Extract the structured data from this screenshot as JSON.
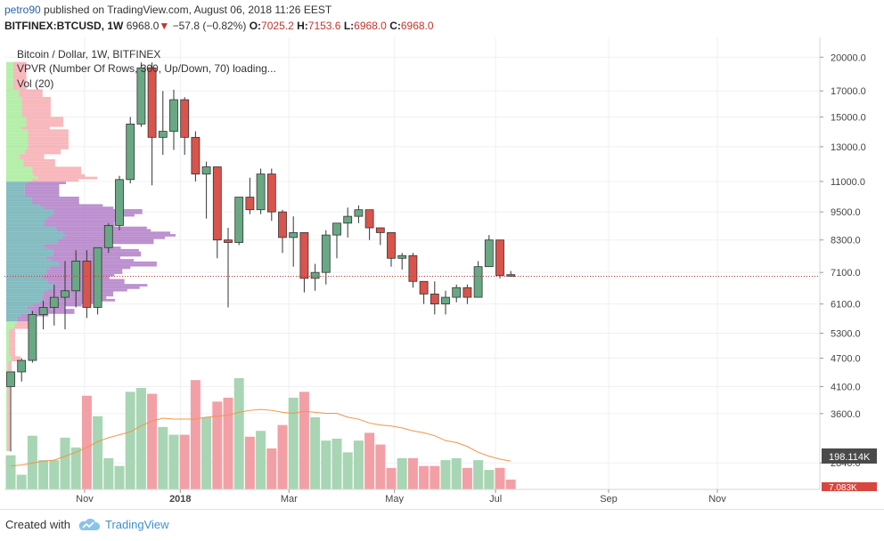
{
  "header": {
    "author": "petro90",
    "published_text": "published on TradingView.com, August 06, 2018 11:26 EEST",
    "symbol": "BITFINEX:BTCUSD, 1W",
    "last": "6968.0",
    "arrow": "▼",
    "change": "−57.8 (−0.82%)",
    "o_label": "O:",
    "o_value": "7025.2",
    "h_label": "H:",
    "h_value": "7153.6",
    "l_label": "L:",
    "l_value": "6968.0",
    "c_label": "C:",
    "c_value": "6968.0"
  },
  "legend": {
    "line1": "Bitcoin / Dollar, 1W, BITFINEX",
    "line2": "VPVR (Number Of Rows, 300, Up/Down, 70) loading...",
    "line3": "Vol (20)"
  },
  "footer": {
    "created": "Created with",
    "brand": "TradingView"
  },
  "colors": {
    "up": "#4a9e6e",
    "down": "#d7473f",
    "up_fill": "#69a884",
    "down_fill": "#d9544c",
    "vol_up": "#a8d5b4",
    "vol_down": "#f2a0a6",
    "vol_ma": "#f39447",
    "vp_up": "#9bea8c",
    "vp_down": "#f4a0a6",
    "vp_va_up": "#5aa6ac",
    "vp_va_down": "#a66bbf",
    "price_line": "#c3352d",
    "vol_label_bg": "#4a4a4a"
  },
  "chart_data": {
    "type": "candlestick",
    "title": "Bitcoin / Dollar, 1W, BITFINEX",
    "y_scale": "log",
    "ylim": [
      2500,
      22000
    ],
    "y_ticks": [
      20000,
      17000,
      15000,
      13000,
      11000,
      9500,
      8300,
      7100,
      6100,
      5300,
      4700,
      4100,
      3600,
      2840
    ],
    "y_tick_labels": [
      "20000.0",
      "17000.0",
      "15000.0",
      "13000.0",
      "11000.0",
      "9500.0",
      "8300.0",
      "7100.0",
      "6100.0",
      "5300.0",
      "4700.0",
      "4100.0",
      "3600.0",
      "2840.0"
    ],
    "x_ticks": [
      "Nov",
      "2018",
      "Mar",
      "May",
      "Jul",
      "Sep",
      "Nov"
    ],
    "last_price": 6968.0,
    "volume_label": "198.114K",
    "volume_label2": "7.083K",
    "candles": [
      {
        "o": 4100,
        "h": 4400,
        "l": 3000,
        "c": 4400
      },
      {
        "o": 4400,
        "h": 4700,
        "l": 4200,
        "c": 4650
      },
      {
        "o": 4650,
        "h": 5900,
        "l": 4600,
        "c": 5800
      },
      {
        "o": 5800,
        "h": 6200,
        "l": 5400,
        "c": 6000
      },
      {
        "o": 6000,
        "h": 6700,
        "l": 5500,
        "c": 6300
      },
      {
        "o": 6300,
        "h": 7500,
        "l": 5400,
        "c": 6500
      },
      {
        "o": 6500,
        "h": 7900,
        "l": 6000,
        "c": 7500
      },
      {
        "o": 7500,
        "h": 7900,
        "l": 5700,
        "c": 6000
      },
      {
        "o": 6000,
        "h": 8000,
        "l": 5800,
        "c": 8000
      },
      {
        "o": 8000,
        "h": 9000,
        "l": 7800,
        "c": 8900
      },
      {
        "o": 8900,
        "h": 11300,
        "l": 8700,
        "c": 11100
      },
      {
        "o": 11100,
        "h": 15000,
        "l": 10900,
        "c": 14500
      },
      {
        "o": 14500,
        "h": 19500,
        "l": 14300,
        "c": 19000
      },
      {
        "o": 19000,
        "h": 19500,
        "l": 10800,
        "c": 13600
      },
      {
        "o": 13600,
        "h": 17000,
        "l": 12500,
        "c": 14000
      },
      {
        "o": 14000,
        "h": 17100,
        "l": 12800,
        "c": 16300
      },
      {
        "o": 16300,
        "h": 16500,
        "l": 12500,
        "c": 13600
      },
      {
        "o": 13600,
        "h": 14000,
        "l": 11000,
        "c": 11400
      },
      {
        "o": 11400,
        "h": 12100,
        "l": 9200,
        "c": 11800
      },
      {
        "o": 11800,
        "h": 11800,
        "l": 7600,
        "c": 8300
      },
      {
        "o": 8300,
        "h": 8800,
        "l": 6000,
        "c": 8200
      },
      {
        "o": 8200,
        "h": 10200,
        "l": 8100,
        "c": 10200
      },
      {
        "o": 10200,
        "h": 11200,
        "l": 9400,
        "c": 9600
      },
      {
        "o": 9600,
        "h": 11700,
        "l": 9400,
        "c": 11400
      },
      {
        "o": 11400,
        "h": 11700,
        "l": 9100,
        "c": 9500
      },
      {
        "o": 9500,
        "h": 9600,
        "l": 7800,
        "c": 8400
      },
      {
        "o": 8400,
        "h": 9300,
        "l": 7300,
        "c": 8600
      },
      {
        "o": 8600,
        "h": 8600,
        "l": 6450,
        "c": 6900
      },
      {
        "o": 6900,
        "h": 7400,
        "l": 6500,
        "c": 7100
      },
      {
        "o": 7100,
        "h": 8700,
        "l": 6700,
        "c": 8500
      },
      {
        "o": 8500,
        "h": 9000,
        "l": 7600,
        "c": 9000
      },
      {
        "o": 9000,
        "h": 9700,
        "l": 8400,
        "c": 9300
      },
      {
        "o": 9300,
        "h": 9800,
        "l": 9000,
        "c": 9600
      },
      {
        "o": 9600,
        "h": 9600,
        "l": 8300,
        "c": 8800
      },
      {
        "o": 8800,
        "h": 8800,
        "l": 8100,
        "c": 8600
      },
      {
        "o": 8600,
        "h": 8600,
        "l": 7300,
        "c": 7600
      },
      {
        "o": 7600,
        "h": 7800,
        "l": 7200,
        "c": 7700
      },
      {
        "o": 7700,
        "h": 7800,
        "l": 6600,
        "c": 6800
      },
      {
        "o": 6800,
        "h": 6800,
        "l": 6100,
        "c": 6400
      },
      {
        "o": 6400,
        "h": 6800,
        "l": 5800,
        "c": 6100
      },
      {
        "o": 6100,
        "h": 6500,
        "l": 5800,
        "c": 6300
      },
      {
        "o": 6300,
        "h": 6700,
        "l": 6150,
        "c": 6600
      },
      {
        "o": 6600,
        "h": 6700,
        "l": 6100,
        "c": 6300
      },
      {
        "o": 6300,
        "h": 7500,
        "l": 6300,
        "c": 7300
      },
      {
        "o": 7300,
        "h": 8500,
        "l": 7300,
        "c": 8300
      },
      {
        "o": 8300,
        "h": 8300,
        "l": 6900,
        "c": 7000
      },
      {
        "o": 7025,
        "h": 7150,
        "l": 6968,
        "c": 6968
      }
    ],
    "volumes": [
      3.5,
      1.5,
      5.5,
      3.0,
      3.0,
      5.3,
      4.3,
      9.6,
      7.5,
      3.2,
      2.4,
      10.0,
      10.4,
      9.8,
      6.4,
      5.6,
      5.6,
      11.2,
      7.4,
      9.0,
      9.4,
      11.4,
      5.4,
      6.0,
      4.2,
      6.6,
      9.4,
      10.0,
      7.4,
      5.0,
      5.2,
      3.8,
      5.0,
      5.8,
      4.6,
      2.2,
      3.2,
      3.2,
      2.4,
      2.4,
      3.0,
      3.2,
      2.2,
      3.0,
      2.0,
      2.2,
      1.0
    ],
    "volume_ma": [
      2.4,
      2.5,
      2.7,
      2.9,
      3.0,
      3.4,
      3.8,
      4.3,
      4.9,
      5.3,
      5.6,
      5.9,
      6.5,
      7.0,
      7.3,
      7.2,
      7.2,
      7.2,
      7.4,
      7.5,
      7.6,
      7.9,
      8.1,
      8.2,
      8.1,
      7.9,
      7.8,
      8.0,
      7.9,
      7.8,
      7.8,
      7.4,
      7.2,
      6.8,
      6.6,
      6.5,
      6.3,
      6.0,
      5.8,
      5.5,
      5.0,
      4.8,
      4.4,
      3.8,
      3.4,
      3.1,
      2.9
    ]
  }
}
